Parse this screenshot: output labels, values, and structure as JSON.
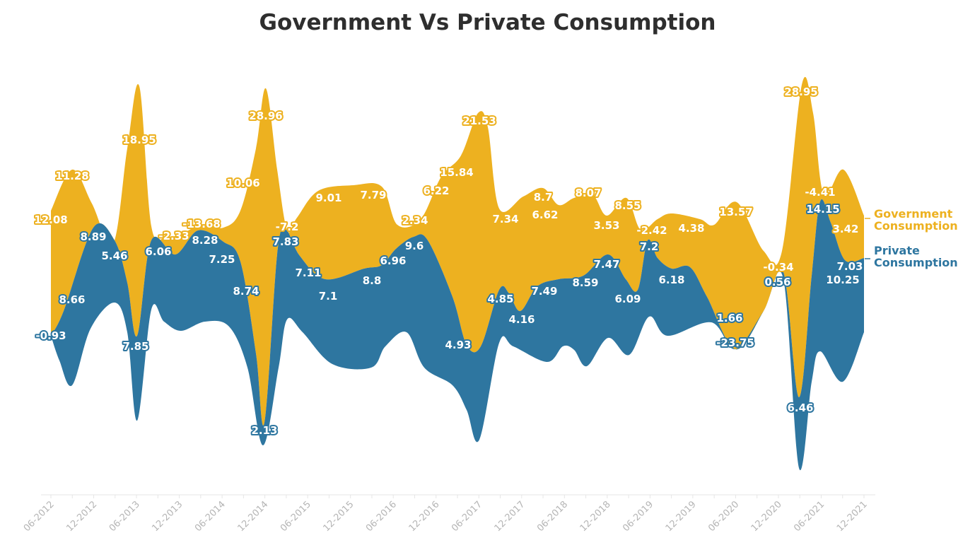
{
  "chart_data": {
    "type": "area",
    "title": "Government Vs Private Consumption",
    "xlabel": "",
    "ylabel": "",
    "x_ticks": [
      "06-2012",
      "12-2012",
      "06-2013",
      "12-2013",
      "06-2014",
      "12-2014",
      "06-2015",
      "12-2015",
      "06-2016",
      "12-2016",
      "06-2017",
      "12-2017",
      "06-2018",
      "12-2018",
      "06-2019",
      "12-2019",
      "06-2020",
      "12-2020",
      "06-2021",
      "12-2021"
    ],
    "legend_position": "right",
    "grid": false,
    "series": [
      {
        "name": "Government Consumption",
        "color": "#EDB120",
        "values": [
          12.08,
          11.28,
          18.95,
          -2.33,
          -13.68,
          10.06,
          28.96,
          -7.2,
          9.01,
          7.79,
          2.34,
          6.22,
          15.84,
          21.53,
          7.34,
          8.7,
          6.62,
          8.07,
          3.53,
          8.55,
          -2.42,
          4.38,
          13.57,
          -0.34,
          28.95,
          -4.41,
          3.42
        ]
      },
      {
        "name": "Private Consumption",
        "color": "#2E76A0",
        "values": [
          -0.93,
          8.66,
          8.89,
          5.46,
          7.85,
          6.06,
          8.28,
          7.25,
          8.74,
          2.13,
          7.83,
          7.11,
          7.1,
          8.8,
          6.96,
          9.6,
          4.93,
          4.85,
          4.16,
          7.49,
          8.59,
          7.47,
          6.09,
          7.2,
          6.18,
          1.66,
          -23.75,
          0.56,
          6.46,
          14.15,
          10.25,
          7.03
        ]
      }
    ]
  }
}
